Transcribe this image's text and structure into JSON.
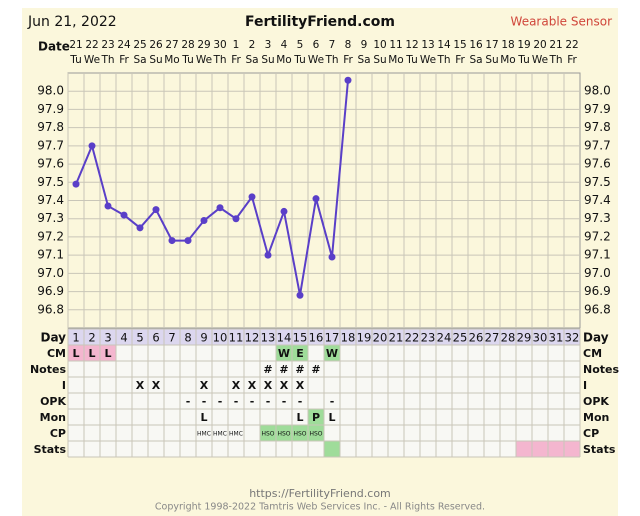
{
  "header": {
    "date": "Jun 21, 2022",
    "site": "FertilityFriend.com",
    "badge": "Wearable Sensor",
    "date_label": "Date"
  },
  "chart_data": {
    "type": "line",
    "categories": [
      "21",
      "22",
      "23",
      "24",
      "25",
      "26",
      "27",
      "28",
      "29",
      "30",
      "1",
      "2",
      "3",
      "4",
      "5",
      "6",
      "7",
      "8",
      "9",
      "10",
      "11",
      "12",
      "13",
      "14",
      "15",
      "16",
      "17",
      "18",
      "19",
      "20",
      "21",
      "22"
    ],
    "weekdays": [
      "Tu",
      "We",
      "Th",
      "Fr",
      "Sa",
      "Su",
      "Mo",
      "Tu",
      "We",
      "Th",
      "Fr",
      "Sa",
      "Su",
      "Mo",
      "Tu",
      "We",
      "Th",
      "Fr",
      "Sa",
      "Su",
      "Mo",
      "Tu",
      "We",
      "Th",
      "Fr",
      "Sa",
      "Su",
      "Mo",
      "Tu",
      "We",
      "Th",
      "Fr"
    ],
    "series": [
      {
        "name": "Temperature",
        "color": "#5a3fc8",
        "values": [
          97.49,
          97.7,
          97.37,
          97.32,
          97.25,
          97.35,
          97.18,
          97.18,
          97.29,
          97.36,
          97.3,
          97.42,
          97.1,
          97.34,
          96.88,
          97.41,
          97.09,
          98.06,
          null,
          null,
          null,
          null,
          null,
          null,
          null,
          null,
          null,
          null,
          null,
          null,
          null,
          null
        ]
      }
    ],
    "ylim": [
      96.7,
      98.1
    ],
    "yticks": [
      {
        "value": 96.8,
        "label": "96.8"
      },
      {
        "value": 96.9,
        "label": "96.9"
      },
      {
        "value": 97,
        "label": "97.0"
      },
      {
        "value": 97.1,
        "label": "97.1"
      },
      {
        "value": 97.2,
        "label": "97.2"
      },
      {
        "value": 97.3,
        "label": "97.3"
      },
      {
        "value": 97.4,
        "label": "97.4"
      },
      {
        "value": 97.5,
        "label": "97.5"
      },
      {
        "value": 97.6,
        "label": "97.6"
      },
      {
        "value": 97.7,
        "label": "97.7"
      },
      {
        "value": 97.8,
        "label": "97.8"
      },
      {
        "value": 97.9,
        "label": "97.9"
      },
      {
        "value": 98,
        "label": "98.0"
      }
    ],
    "grid": true
  },
  "table": {
    "day_label": "Day",
    "days": [
      1,
      2,
      3,
      4,
      5,
      6,
      7,
      8,
      9,
      10,
      11,
      12,
      13,
      14,
      15,
      16,
      17,
      18,
      19,
      20,
      21,
      22,
      23,
      24,
      25,
      26,
      27,
      28,
      29,
      30,
      31,
      32
    ],
    "rows": [
      {
        "label": "CM",
        "cells": [
          {
            "day": 1,
            "text": "L",
            "color": "#f4b6cf"
          },
          {
            "day": 2,
            "text": "L",
            "color": "#f4b6cf"
          },
          {
            "day": 3,
            "text": "L",
            "color": "#f4b6cf"
          },
          {
            "day": 14,
            "text": "W",
            "color": "#9fdc9a"
          },
          {
            "day": 15,
            "text": "E",
            "color": "#9fdc9a"
          },
          {
            "day": 17,
            "text": "W",
            "color": "#9fdc9a"
          }
        ]
      },
      {
        "label": "Notes",
        "cells": [
          {
            "day": 13,
            "text": "#"
          },
          {
            "day": 14,
            "text": "#"
          },
          {
            "day": 15,
            "text": "#"
          },
          {
            "day": 16,
            "text": "#"
          }
        ]
      },
      {
        "label": "I",
        "cells": [
          {
            "day": 5,
            "text": "X"
          },
          {
            "day": 6,
            "text": "X"
          },
          {
            "day": 9,
            "text": "X"
          },
          {
            "day": 11,
            "text": "X"
          },
          {
            "day": 12,
            "text": "X"
          },
          {
            "day": 13,
            "text": "X"
          },
          {
            "day": 14,
            "text": "X"
          },
          {
            "day": 15,
            "text": "X"
          }
        ]
      },
      {
        "label": "OPK",
        "cells": [
          {
            "day": 8,
            "text": "-"
          },
          {
            "day": 9,
            "text": "-"
          },
          {
            "day": 10,
            "text": "-"
          },
          {
            "day": 11,
            "text": "-"
          },
          {
            "day": 12,
            "text": "-"
          },
          {
            "day": 13,
            "text": "-"
          },
          {
            "day": 14,
            "text": "-"
          },
          {
            "day": 15,
            "text": "-"
          },
          {
            "day": 17,
            "text": "-"
          }
        ]
      },
      {
        "label": "Mon",
        "cells": [
          {
            "day": 9,
            "text": "L"
          },
          {
            "day": 15,
            "text": "L"
          },
          {
            "day": 16,
            "text": "P",
            "color": "#9fdc9a"
          },
          {
            "day": 17,
            "text": "L"
          }
        ]
      },
      {
        "label": "CP",
        "cells": [
          {
            "day": 9,
            "text": "HMC"
          },
          {
            "day": 10,
            "text": "HMC"
          },
          {
            "day": 11,
            "text": "HMC"
          },
          {
            "day": 13,
            "text": "HSO",
            "color": "#9fdc9a"
          },
          {
            "day": 14,
            "text": "HSO",
            "color": "#9fdc9a"
          },
          {
            "day": 15,
            "text": "HSO",
            "color": "#9fdc9a"
          },
          {
            "day": 16,
            "text": "HSO",
            "color": "#9fdc9a"
          }
        ]
      },
      {
        "label": "Stats",
        "cells": [
          {
            "day": 17,
            "color": "#9fdc9a"
          },
          {
            "day": 29,
            "color": "#f4b6cf"
          },
          {
            "day": 30,
            "color": "#f4b6cf"
          },
          {
            "day": 31,
            "color": "#f4b6cf"
          },
          {
            "day": 32,
            "color": "#f4b6cf"
          }
        ]
      }
    ]
  },
  "footer": {
    "url": "https://FertilityFriend.com",
    "copyright": "Copyright 1998-2022 Tamtris Web Services Inc. - All Rights Reserved."
  }
}
